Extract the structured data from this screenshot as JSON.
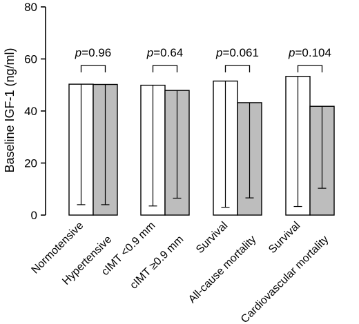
{
  "chart_data": {
    "type": "bar",
    "ylabel": "Baseline IGF-1 (ng/ml)",
    "ylim": [
      0,
      80
    ],
    "yticks": [
      0,
      20,
      40,
      60,
      80
    ],
    "grid": false,
    "colors": {
      "first": "#ffffff",
      "second": "#bdbdbd",
      "stroke": "#000000"
    },
    "groups": [
      {
        "p_label": "p=0.96",
        "bars": [
          {
            "label": "Normotensive",
            "value": 50.3,
            "err_low": 4.0
          },
          {
            "label": "Hypertensive",
            "value": 50.2,
            "err_low": 4.0
          }
        ]
      },
      {
        "p_label": "p=0.64",
        "bars": [
          {
            "label": "cIMT <0.9 mm",
            "value": 49.9,
            "err_low": 3.5
          },
          {
            "label": "cIMT ≥0.9 mm",
            "value": 47.9,
            "err_low": 6.5
          }
        ]
      },
      {
        "p_label": "p=0.061",
        "bars": [
          {
            "label": "Survival",
            "value": 51.5,
            "err_low": 3.0
          },
          {
            "label": "All-cause mortality",
            "value": 43.2,
            "err_low": 6.6
          }
        ]
      },
      {
        "p_label": "p=0.104",
        "bars": [
          {
            "label": "Survival",
            "value": 53.3,
            "err_low": 3.3
          },
          {
            "label": "Cardiovascular mortality",
            "value": 41.8,
            "err_low": 10.3
          }
        ]
      }
    ]
  }
}
